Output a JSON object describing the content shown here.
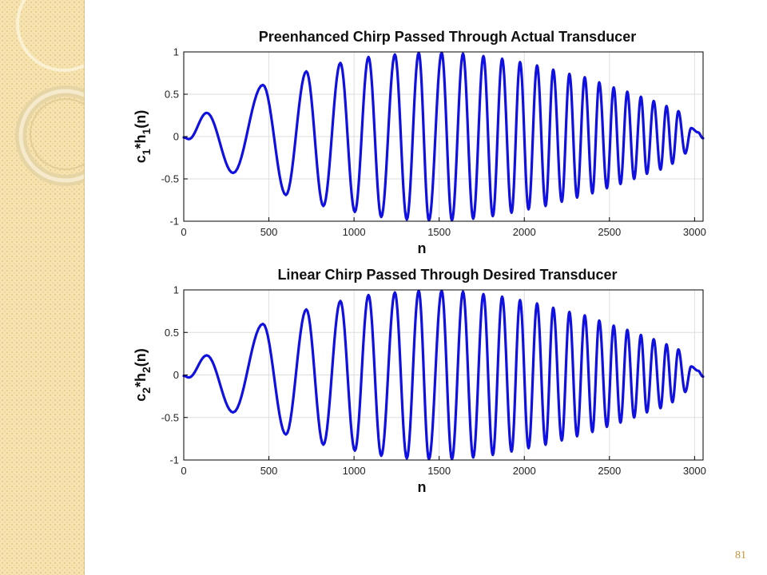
{
  "slide": {
    "page_number": "81"
  },
  "colors": {
    "line": "#1010e0",
    "sidebar": "#f6e3b0"
  },
  "chart_data": [
    {
      "type": "line",
      "title": "Preenhanced Chirp Passed Through Actual Transducer",
      "xlabel": "n",
      "ylabel": {
        "main": "c",
        "sub1": "1",
        "mid": "*h",
        "sub2": "1",
        "tail": "(n)"
      },
      "xlim": [
        0,
        3050
      ],
      "ylim": [
        -1,
        1
      ],
      "xticks": [
        0,
        500,
        1000,
        1500,
        2000,
        2500,
        3000
      ],
      "yticks": [
        1,
        0.5,
        0,
        -0.5,
        -1
      ],
      "grid": true,
      "series": [
        {
          "x": [
            0,
            30,
            135,
            290,
            465,
            600,
            720,
            820,
            920,
            1005,
            1085,
            1160,
            1240,
            1310,
            1380,
            1440,
            1515,
            1575,
            1640,
            1700,
            1760,
            1815,
            1870,
            1925,
            1975,
            2025,
            2075,
            2125,
            2170,
            2220,
            2265,
            2310,
            2355,
            2400,
            2440,
            2485,
            2525,
            2565,
            2605,
            2645,
            2685,
            2720,
            2760,
            2800,
            2835,
            2870,
            2905,
            2945,
            2980,
            3020,
            3050
          ],
          "y": [
            -0.01,
            -0.03,
            0.28,
            -0.43,
            0.61,
            -0.69,
            0.77,
            -0.82,
            0.87,
            -0.89,
            0.94,
            -0.95,
            0.97,
            -0.98,
            0.99,
            -0.99,
            0.99,
            -0.99,
            0.98,
            -0.97,
            0.95,
            -0.94,
            0.92,
            -0.9,
            0.88,
            -0.86,
            0.84,
            -0.82,
            0.79,
            -0.77,
            0.74,
            -0.72,
            0.7,
            -0.67,
            0.64,
            -0.61,
            0.58,
            -0.56,
            0.53,
            -0.5,
            0.47,
            -0.44,
            0.42,
            -0.39,
            0.36,
            -0.32,
            0.3,
            -0.2,
            0.1,
            0.05,
            -0.02
          ]
        }
      ]
    },
    {
      "type": "line",
      "title": "Linear Chirp Passed Through Desired Transducer",
      "xlabel": "n",
      "ylabel": {
        "main": "c",
        "sub1": "2",
        "mid": "*h",
        "sub2": "2",
        "tail": "(n)"
      },
      "xlim": [
        0,
        3050
      ],
      "ylim": [
        -1,
        1
      ],
      "xticks": [
        0,
        500,
        1000,
        1500,
        2000,
        2500,
        3000
      ],
      "yticks": [
        1,
        0.5,
        0,
        -0.5,
        -1
      ],
      "grid": true,
      "series": [
        {
          "x": [
            0,
            30,
            135,
            290,
            465,
            600,
            720,
            820,
            920,
            1005,
            1085,
            1160,
            1240,
            1310,
            1380,
            1440,
            1515,
            1575,
            1640,
            1700,
            1760,
            1815,
            1870,
            1925,
            1975,
            2025,
            2075,
            2125,
            2170,
            2220,
            2265,
            2310,
            2355,
            2400,
            2440,
            2485,
            2525,
            2565,
            2605,
            2645,
            2685,
            2720,
            2760,
            2800,
            2835,
            2870,
            2905,
            2945,
            2980,
            3020,
            3050
          ],
          "y": [
            -0.01,
            -0.03,
            0.23,
            -0.44,
            0.6,
            -0.7,
            0.77,
            -0.82,
            0.87,
            -0.89,
            0.94,
            -0.95,
            0.97,
            -0.98,
            0.99,
            -0.99,
            0.99,
            -0.99,
            0.98,
            -0.97,
            0.95,
            -0.94,
            0.92,
            -0.9,
            0.88,
            -0.86,
            0.84,
            -0.82,
            0.79,
            -0.77,
            0.74,
            -0.72,
            0.7,
            -0.67,
            0.64,
            -0.61,
            0.58,
            -0.56,
            0.53,
            -0.5,
            0.47,
            -0.44,
            0.42,
            -0.39,
            0.36,
            -0.32,
            0.3,
            -0.2,
            0.1,
            0.05,
            -0.02
          ]
        }
      ]
    }
  ]
}
